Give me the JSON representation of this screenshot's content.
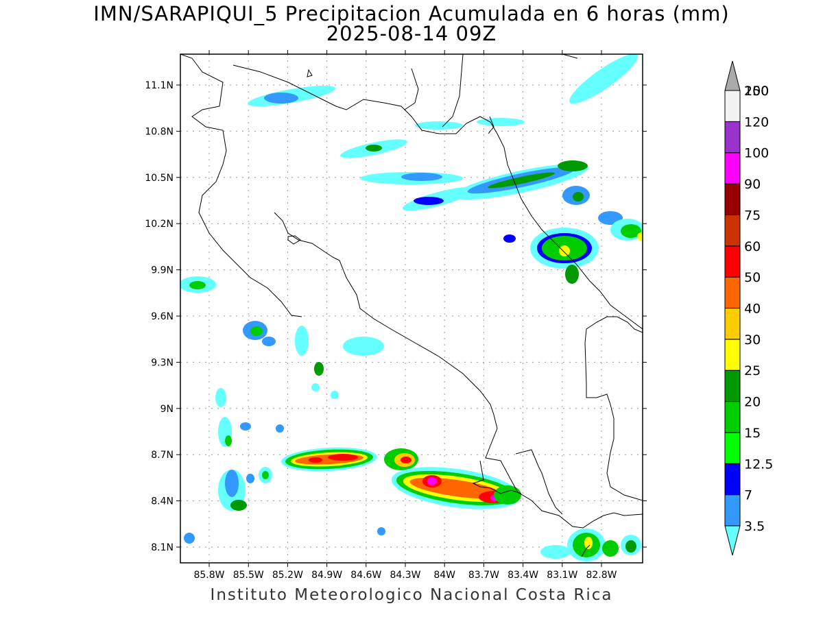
{
  "header": {
    "title_line1": "IMN/SARAPIQUI_5 Precipitacion Acumulada en 6 horas (mm)",
    "title_line2": "2025-08-14 09Z"
  },
  "footer": {
    "credit": "Instituto Meteorologico Nacional Costa Rica"
  },
  "axes": {
    "y_ticks": [
      "11.1N",
      "10.8N",
      "10.5N",
      "10.2N",
      "9.9N",
      "9.6N",
      "9.3N",
      "9N",
      "8.7N",
      "8.4N",
      "8.1N"
    ],
    "x_ticks": [
      "85.8W",
      "85.5W",
      "85.2W",
      "84.9W",
      "84.6W",
      "84.3W",
      "84W",
      "83.7W",
      "83.4W",
      "83.1W",
      "82.8W"
    ]
  },
  "colorbar": {
    "labels": [
      "3.5",
      "7",
      "12.5",
      "15",
      "20",
      "25",
      "30",
      "40",
      "50",
      "60",
      "75",
      "90",
      "100",
      "120",
      "150",
      "200"
    ],
    "colors": [
      "#66ffff",
      "#3399ff",
      "#0000ff",
      "#00ff00",
      "#00cc00",
      "#009900",
      "#ffff00",
      "#ffcc00",
      "#ff6600",
      "#ff0000",
      "#cc3300",
      "#990000",
      "#ff00ff",
      "#9933cc",
      "#f2f2f2",
      "#aaaaaa"
    ]
  }
}
